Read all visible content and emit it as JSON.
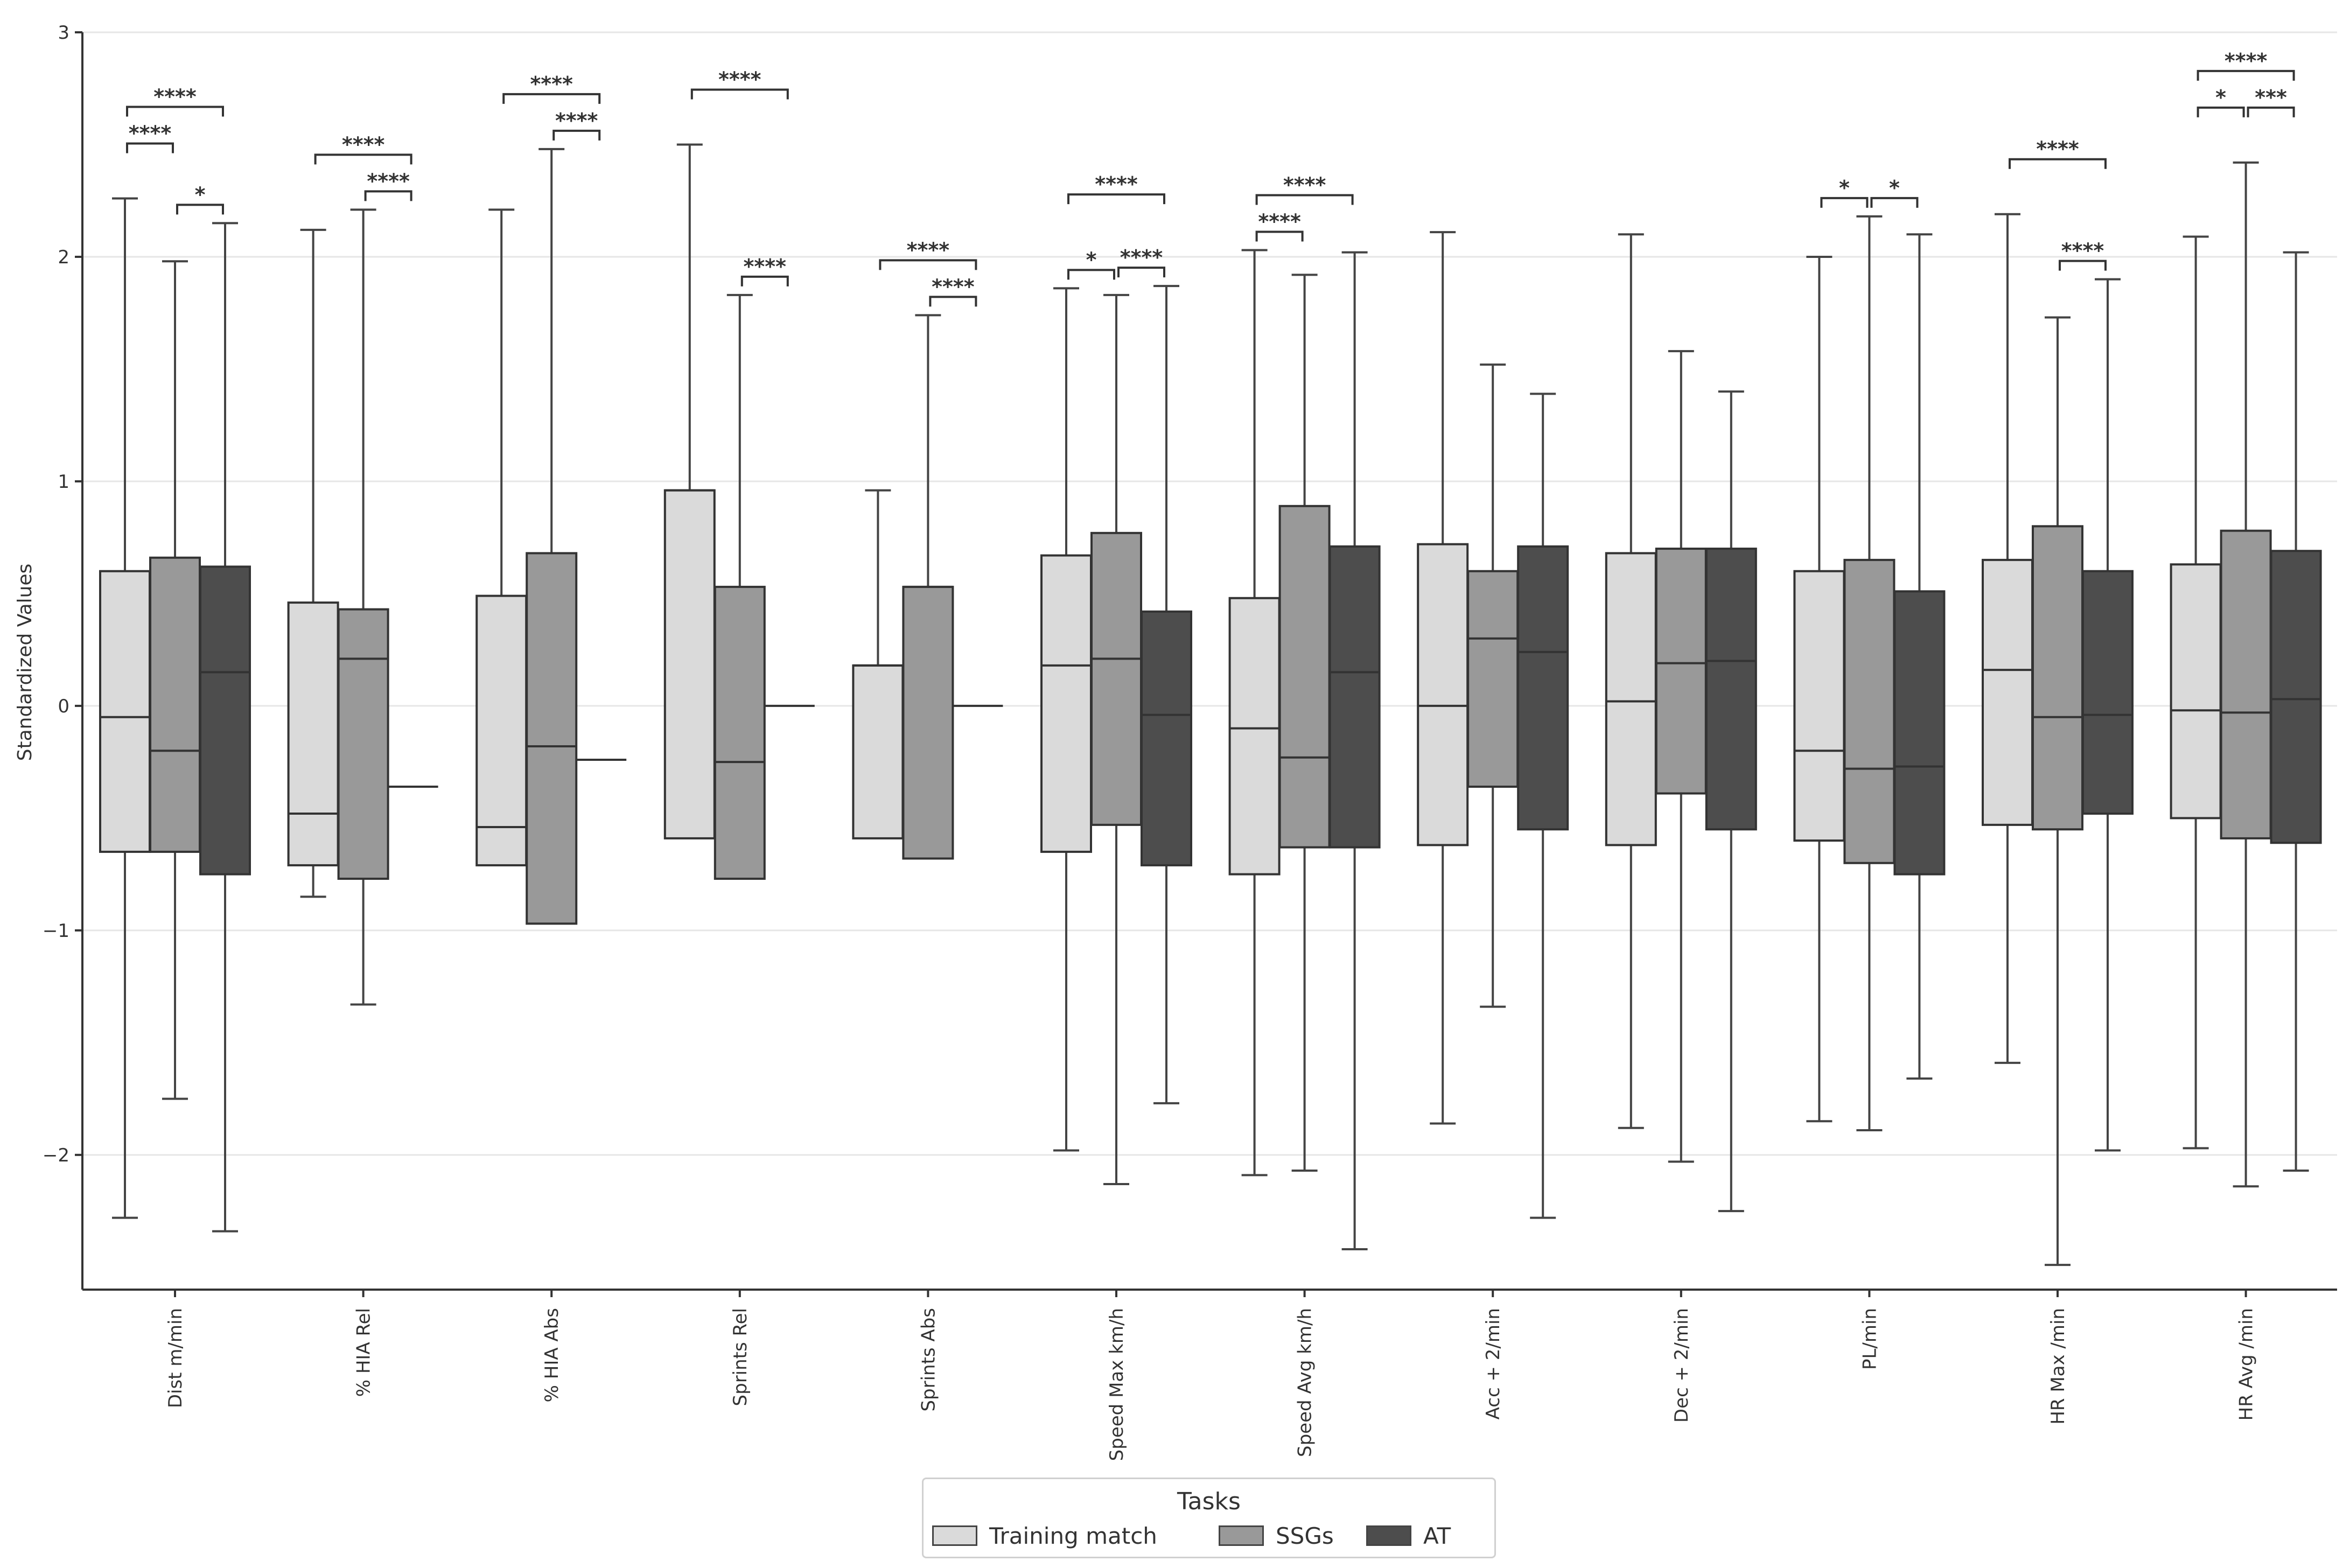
{
  "chart_data": {
    "type": "box",
    "title": "",
    "xlabel": "",
    "ylabel": "Standardized Values",
    "ylim": [
      -2.6,
      3.0
    ],
    "yticks": [
      3,
      2,
      1,
      0,
      -1,
      -2
    ],
    "ytick_labels": [
      "3",
      "2",
      "1",
      "0",
      "−1",
      "−2"
    ],
    "grid": "horizontal",
    "legend": {
      "title": "Tasks",
      "placement": "bottom-center",
      "entries": [
        "Training match",
        "SSGs",
        "AT"
      ]
    },
    "series_colors": {
      "Training match": "#dadada",
      "SSGs": "#999999",
      "AT": "#4d4d4d"
    },
    "categories": [
      "Dist m/min",
      "% HIA Rel",
      "% HIA Abs",
      "Sprints Rel",
      "Sprints Abs",
      "Speed Max km/h",
      "Speed Avg km/h",
      "Acc + 2/min",
      "Dec + 2/min",
      "PL/min",
      "HR Max /min",
      "HR Avg /min"
    ],
    "groups": [
      {
        "category": "Dist m/min",
        "boxes": [
          {
            "series": "Training match",
            "whislo": -2.28,
            "q1": -0.65,
            "med": -0.05,
            "q3": 0.6,
            "whishi": 2.26
          },
          {
            "series": "SSGs",
            "whislo": -1.75,
            "q1": -0.65,
            "med": -0.2,
            "q3": 0.66,
            "whishi": 1.98
          },
          {
            "series": "AT",
            "whislo": -2.34,
            "q1": -0.75,
            "med": 0.15,
            "q3": 0.62,
            "whishi": 2.15
          }
        ],
        "significance": [
          {
            "from": 0,
            "to": 2,
            "level": 2,
            "label": "****"
          },
          {
            "from": 0,
            "to": 1,
            "level": 1,
            "label": "****"
          },
          {
            "from": 1,
            "to": 2,
            "level": 0,
            "label": "*"
          }
        ]
      },
      {
        "category": "% HIA Rel",
        "boxes": [
          {
            "series": "Training match",
            "whislo": -0.85,
            "q1": -0.71,
            "med": -0.48,
            "q3": 0.46,
            "whishi": 2.12
          },
          {
            "series": "SSGs",
            "whislo": -1.33,
            "q1": -0.77,
            "med": 0.21,
            "q3": 0.43,
            "whishi": 2.21
          },
          {
            "series": "AT",
            "whislo": -0.36,
            "q1": -0.36,
            "med": -0.36,
            "q3": -0.36,
            "whishi": -0.36
          }
        ],
        "significance": [
          {
            "from": 0,
            "to": 2,
            "level": 1,
            "label": "****"
          },
          {
            "from": 1,
            "to": 2,
            "level": 0,
            "label": "****"
          }
        ]
      },
      {
        "category": "% HIA Abs",
        "boxes": [
          {
            "series": "Training match",
            "whislo": -0.71,
            "q1": -0.71,
            "med": -0.54,
            "q3": 0.49,
            "whishi": 2.21
          },
          {
            "series": "SSGs",
            "whislo": -0.97,
            "q1": -0.97,
            "med": -0.18,
            "q3": 0.68,
            "whishi": 2.48
          },
          {
            "series": "AT",
            "whislo": -0.24,
            "q1": -0.24,
            "med": -0.24,
            "q3": -0.24,
            "whishi": -0.24
          }
        ],
        "significance": [
          {
            "from": 0,
            "to": 2,
            "level": 1,
            "label": "****"
          },
          {
            "from": 1,
            "to": 2,
            "level": 0,
            "label": "****"
          }
        ]
      },
      {
        "category": "Sprints Rel",
        "boxes": [
          {
            "series": "Training match",
            "whislo": -0.59,
            "q1": -0.59,
            "med": 0.96,
            "q3": 0.96,
            "whishi": 2.5
          },
          {
            "series": "SSGs",
            "whislo": -0.77,
            "q1": -0.77,
            "med": -0.25,
            "q3": 0.53,
            "whishi": 1.83
          },
          {
            "series": "AT",
            "whislo": 0.0,
            "q1": 0.0,
            "med": 0.0,
            "q3": 0.0,
            "whishi": 0.0
          }
        ],
        "significance": [
          {
            "from": 0,
            "to": 2,
            "level": 1,
            "label": "****"
          },
          {
            "from": 1,
            "to": 2,
            "level": 0,
            "label": "****"
          }
        ]
      },
      {
        "category": "Sprints Abs",
        "boxes": [
          {
            "series": "Training match",
            "whislo": -0.59,
            "q1": -0.59,
            "med": 0.18,
            "q3": 0.18,
            "whishi": 0.96
          },
          {
            "series": "SSGs",
            "whislo": -0.68,
            "q1": -0.68,
            "med": 0.53,
            "q3": 0.53,
            "whishi": 1.74
          },
          {
            "series": "AT",
            "whislo": 0.0,
            "q1": 0.0,
            "med": 0.0,
            "q3": 0.0,
            "whishi": 0.0
          }
        ],
        "significance": [
          {
            "from": 0,
            "to": 2,
            "level": 1,
            "label": "****"
          },
          {
            "from": 1,
            "to": 2,
            "level": 0,
            "label": "****"
          }
        ]
      },
      {
        "category": "Speed Max km/h",
        "boxes": [
          {
            "series": "Training match",
            "whislo": -1.98,
            "q1": -0.65,
            "med": 0.18,
            "q3": 0.67,
            "whishi": 1.86
          },
          {
            "series": "SSGs",
            "whislo": -2.13,
            "q1": -0.53,
            "med": 0.21,
            "q3": 0.77,
            "whishi": 1.83
          },
          {
            "series": "AT",
            "whislo": -1.77,
            "q1": -0.71,
            "med": -0.04,
            "q3": 0.42,
            "whishi": 1.87
          }
        ],
        "significance": [
          {
            "from": 0,
            "to": 2,
            "level": 2,
            "label": "****"
          },
          {
            "from": 0,
            "to": 1,
            "level": 0,
            "label": "*"
          },
          {
            "from": 1,
            "to": 2,
            "level": 0,
            "label": "****"
          }
        ]
      },
      {
        "category": "Speed Avg km/h",
        "boxes": [
          {
            "series": "Training match",
            "whislo": -2.09,
            "q1": -0.75,
            "med": -0.1,
            "q3": 0.48,
            "whishi": 2.03
          },
          {
            "series": "SSGs",
            "whislo": -2.07,
            "q1": -0.63,
            "med": -0.23,
            "q3": 0.89,
            "whishi": 1.92
          },
          {
            "series": "AT",
            "whislo": -2.42,
            "q1": -0.63,
            "med": 0.15,
            "q3": 0.71,
            "whishi": 2.02
          }
        ],
        "significance": [
          {
            "from": 0,
            "to": 2,
            "level": 1,
            "label": "****"
          },
          {
            "from": 0,
            "to": 1,
            "level": 0,
            "label": "****"
          }
        ]
      },
      {
        "category": "Acc + 2/min",
        "boxes": [
          {
            "series": "Training match",
            "whislo": -1.86,
            "q1": -0.62,
            "med": 0.0,
            "q3": 0.72,
            "whishi": 2.11
          },
          {
            "series": "SSGs",
            "whislo": -1.34,
            "q1": -0.36,
            "med": 0.3,
            "q3": 0.6,
            "whishi": 1.52
          },
          {
            "series": "AT",
            "whislo": -2.28,
            "q1": -0.55,
            "med": 0.24,
            "q3": 0.71,
            "whishi": 1.39
          }
        ],
        "significance": []
      },
      {
        "category": "Dec + 2/min",
        "boxes": [
          {
            "series": "Training match",
            "whislo": -1.88,
            "q1": -0.62,
            "med": 0.02,
            "q3": 0.68,
            "whishi": 2.1
          },
          {
            "series": "SSGs",
            "whislo": -2.03,
            "q1": -0.39,
            "med": 0.19,
            "q3": 0.7,
            "whishi": 1.58
          },
          {
            "series": "AT",
            "whislo": -2.25,
            "q1": -0.55,
            "med": 0.2,
            "q3": 0.7,
            "whishi": 1.4
          }
        ],
        "significance": []
      },
      {
        "category": "PL/min",
        "boxes": [
          {
            "series": "Training match",
            "whislo": -1.85,
            "q1": -0.6,
            "med": -0.2,
            "q3": 0.6,
            "whishi": 2.0
          },
          {
            "series": "SSGs",
            "whislo": -1.89,
            "q1": -0.7,
            "med": -0.28,
            "q3": 0.65,
            "whishi": 2.18
          },
          {
            "series": "AT",
            "whislo": -1.66,
            "q1": -0.75,
            "med": -0.27,
            "q3": 0.51,
            "whishi": 2.1
          }
        ],
        "significance": [
          {
            "from": 0,
            "to": 1,
            "level": 0,
            "label": "*"
          },
          {
            "from": 1,
            "to": 2,
            "level": 0,
            "label": "*"
          }
        ]
      },
      {
        "category": "HR Max /min",
        "boxes": [
          {
            "series": "Training match",
            "whislo": -1.59,
            "q1": -0.53,
            "med": 0.16,
            "q3": 0.65,
            "whishi": 2.19
          },
          {
            "series": "SSGs",
            "whislo": -2.49,
            "q1": -0.55,
            "med": -0.05,
            "q3": 0.8,
            "whishi": 1.73
          },
          {
            "series": "AT",
            "whislo": -1.98,
            "q1": -0.48,
            "med": -0.04,
            "q3": 0.6,
            "whishi": 1.9
          }
        ],
        "significance": [
          {
            "from": 0,
            "to": 2,
            "level": 1,
            "label": "****"
          },
          {
            "from": 1,
            "to": 2,
            "level": 0,
            "label": "****"
          }
        ]
      },
      {
        "category": "HR Avg /min",
        "boxes": [
          {
            "series": "Training match",
            "whislo": -1.97,
            "q1": -0.5,
            "med": -0.02,
            "q3": 0.63,
            "whishi": 2.09
          },
          {
            "series": "SSGs",
            "whislo": -2.14,
            "q1": -0.59,
            "med": -0.03,
            "q3": 0.78,
            "whishi": 2.42
          },
          {
            "series": "AT",
            "whislo": -2.07,
            "q1": -0.61,
            "med": 0.03,
            "q3": 0.69,
            "whishi": 2.02
          }
        ],
        "significance": [
          {
            "from": 0,
            "to": 2,
            "level": 2,
            "label": "****"
          },
          {
            "from": 0,
            "to": 1,
            "level": 1,
            "label": "*"
          },
          {
            "from": 1,
            "to": 2,
            "level": 1,
            "label": "***"
          }
        ]
      }
    ]
  }
}
